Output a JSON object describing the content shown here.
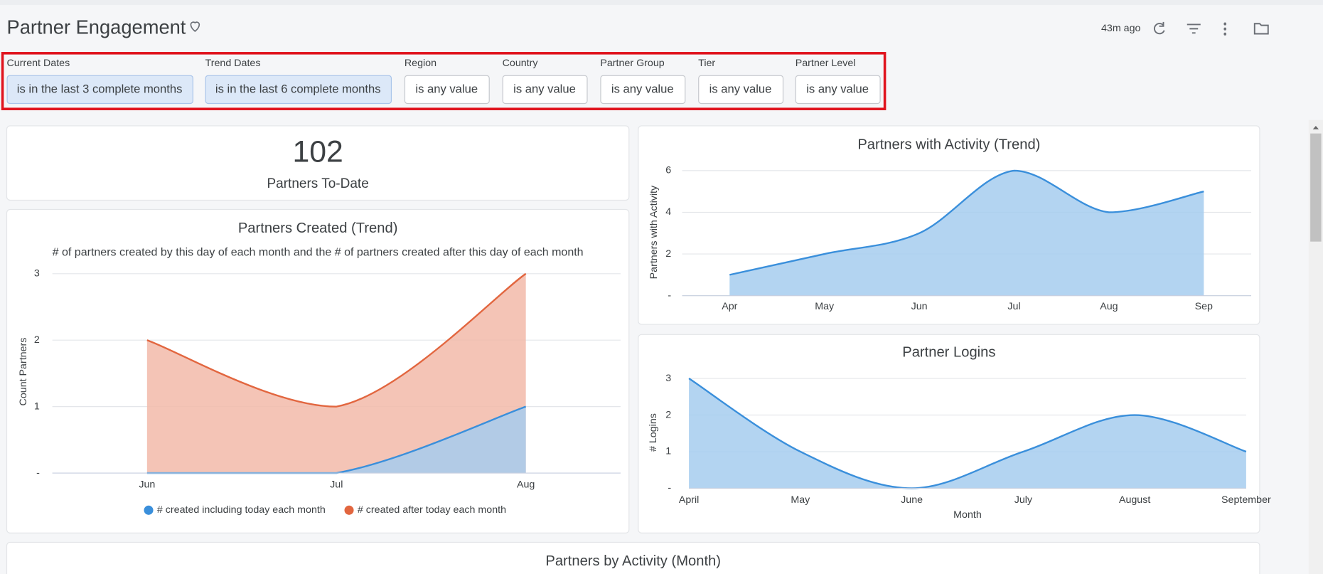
{
  "header": {
    "title": "Partner Engagement",
    "last_updated": "43m ago"
  },
  "filters": [
    {
      "label": "Current Dates",
      "value": "is in the last 3 complete months"
    },
    {
      "label": "Trend Dates",
      "value": "is in the last 6 complete months"
    },
    {
      "label": "Region",
      "value": "is any value"
    },
    {
      "label": "Country",
      "value": "is any value"
    },
    {
      "label": "Partner Group",
      "value": "is any value"
    },
    {
      "label": "Tier",
      "value": "is any value"
    },
    {
      "label": "Partner Level",
      "value": "is any value"
    }
  ],
  "chart_data": [
    {
      "type": "single_value",
      "value": 102,
      "label": "Partners To-Date"
    },
    {
      "type": "area",
      "title": "Partners Created (Trend)",
      "subtitle": "# of partners created by this day of each month and the # of partners created after this day of each month",
      "y_label": "Count Partners",
      "categories": [
        "Jun",
        "Jul",
        "Aug"
      ],
      "series": [
        {
          "name": "# created including today each month",
          "color": "#3a8fdb",
          "values": [
            0,
            0,
            1
          ]
        },
        {
          "name": "# created after today each month",
          "color": "#e2663f",
          "values": [
            2,
            1,
            3
          ]
        }
      ],
      "ylim": [
        0,
        3
      ],
      "yticks": [
        {
          "value": 0,
          "label": "-"
        },
        1,
        2,
        3
      ],
      "grid": true,
      "legend": "bottom"
    },
    {
      "type": "area",
      "title": "Partners with Activity (Trend)",
      "y_label": "Partners with Activity",
      "categories": [
        "Apr",
        "May",
        "Jun",
        "Jul",
        "Aug",
        "Sep"
      ],
      "values": [
        1,
        2,
        3,
        6,
        4,
        5
      ],
      "color": "#3a8fdb",
      "ylim": [
        0,
        6
      ],
      "yticks": [
        {
          "value": 0,
          "label": "-"
        },
        2,
        4,
        6
      ],
      "grid": true
    },
    {
      "type": "area",
      "title": "Partner Logins",
      "y_label": "# Logins",
      "x_label": "Month",
      "categories": [
        "April",
        "May",
        "June",
        "July",
        "August",
        "September"
      ],
      "values": [
        3,
        1,
        0,
        1,
        2,
        1
      ],
      "color": "#3a8fdb",
      "ylim": [
        0,
        3
      ],
      "yticks": [
        {
          "value": 0,
          "label": "-"
        },
        1,
        2,
        3
      ],
      "grid": true
    }
  ],
  "footer_tile": {
    "title": "Partners by Activity (Month)"
  }
}
